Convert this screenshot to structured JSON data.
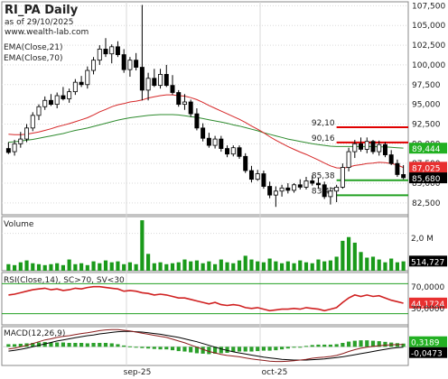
{
  "header": {
    "title": "RI_PA Daily",
    "subtitle": "as of 29/10/2025",
    "site": "www.wealth-lab.com",
    "ema1": "EMA(Close,21)",
    "ema2": "EMA(Close,70)"
  },
  "colors": {
    "up_body": "#ffffff",
    "down_body": "#000000",
    "candle_edge": "#000000",
    "ema21": "#d62728",
    "ema70": "#2e8b2e",
    "resistance": "#e00000",
    "support": "#22a022",
    "volume": "#1a9a1a",
    "rsi": "#d02020",
    "rsi_band": "#22a022",
    "macd_line": "#8b1a1a",
    "macd_signal": "#000000",
    "macd_hist": "#2aa02a",
    "grid": "#d9d9d9",
    "tag_green": "#22b022",
    "tag_red": "#e83030",
    "tag_black": "#000000"
  },
  "price_panel": {
    "y_ticks": [
      "107,500",
      "105,000",
      "102,500",
      "100,000",
      "97,500",
      "95,000",
      "92,500",
      "90,000",
      "87,500",
      "85,000",
      "82,500"
    ],
    "level_labels": [
      "92,10",
      "90,16",
      "85,38",
      "83,47"
    ],
    "tags": {
      "ema70": "89,444",
      "ema21": "87,025",
      "last": "85,680"
    }
  },
  "volume_panel": {
    "title": "Volume",
    "y_label": "2,0 M",
    "tag": "514,727"
  },
  "rsi_panel": {
    "title": "RSI(Close,14), SC>70, SV<30",
    "y_labels": [
      "70,0000",
      "30,0000"
    ],
    "tag": "44,1724"
  },
  "macd_panel": {
    "title": "MACD(12,26,9)",
    "tags": [
      "0,3189",
      "-0,0473"
    ]
  },
  "x_labels": [
    "sep-25",
    "oct-25"
  ],
  "chart_data": {
    "type": "candlestick",
    "ylim": [
      81000,
      108000
    ],
    "candles": [
      {
        "o": 89400,
        "h": 90200,
        "l": 88700,
        "c": 88900
      },
      {
        "o": 89000,
        "h": 90500,
        "l": 88500,
        "c": 90000
      },
      {
        "o": 90000,
        "h": 91500,
        "l": 89500,
        "c": 90600
      },
      {
        "o": 90600,
        "h": 92500,
        "l": 90200,
        "c": 92000
      },
      {
        "o": 92000,
        "h": 94000,
        "l": 91600,
        "c": 93600
      },
      {
        "o": 93600,
        "h": 95000,
        "l": 93000,
        "c": 94700
      },
      {
        "o": 94700,
        "h": 96000,
        "l": 94300,
        "c": 95500
      },
      {
        "o": 95500,
        "h": 96300,
        "l": 94800,
        "c": 95000
      },
      {
        "o": 95000,
        "h": 96500,
        "l": 94500,
        "c": 96100
      },
      {
        "o": 96100,
        "h": 97200,
        "l": 95500,
        "c": 95700
      },
      {
        "o": 95700,
        "h": 97000,
        "l": 95200,
        "c": 96600
      },
      {
        "o": 96600,
        "h": 98200,
        "l": 96200,
        "c": 97800
      },
      {
        "o": 97800,
        "h": 98600,
        "l": 97200,
        "c": 97500
      },
      {
        "o": 97500,
        "h": 99800,
        "l": 97000,
        "c": 99300
      },
      {
        "o": 99300,
        "h": 101000,
        "l": 98800,
        "c": 100600
      },
      {
        "o": 100600,
        "h": 102500,
        "l": 100000,
        "c": 102000
      },
      {
        "o": 102000,
        "h": 103400,
        "l": 101000,
        "c": 101400
      },
      {
        "o": 101400,
        "h": 102600,
        "l": 100200,
        "c": 102300
      },
      {
        "o": 102300,
        "h": 103000,
        "l": 101000,
        "c": 101300
      },
      {
        "o": 101300,
        "h": 102000,
        "l": 99000,
        "c": 99400
      },
      {
        "o": 99400,
        "h": 101000,
        "l": 98500,
        "c": 100600
      },
      {
        "o": 100600,
        "h": 101500,
        "l": 99300,
        "c": 99700
      },
      {
        "o": 99700,
        "h": 107600,
        "l": 95500,
        "c": 96800
      },
      {
        "o": 96800,
        "h": 99000,
        "l": 95500,
        "c": 98300
      },
      {
        "o": 98300,
        "h": 99500,
        "l": 97200,
        "c": 97400
      },
      {
        "o": 97400,
        "h": 99500,
        "l": 97000,
        "c": 98800
      },
      {
        "o": 98800,
        "h": 100000,
        "l": 97200,
        "c": 97400
      },
      {
        "o": 97400,
        "h": 98700,
        "l": 96200,
        "c": 96500
      },
      {
        "o": 96500,
        "h": 96800,
        "l": 94700,
        "c": 95000
      },
      {
        "o": 95000,
        "h": 96300,
        "l": 94300,
        "c": 95300
      },
      {
        "o": 95300,
        "h": 95600,
        "l": 93400,
        "c": 93800
      },
      {
        "o": 93800,
        "h": 94500,
        "l": 91700,
        "c": 92000
      },
      {
        "o": 92000,
        "h": 92600,
        "l": 90300,
        "c": 90700
      },
      {
        "o": 90700,
        "h": 91400,
        "l": 89500,
        "c": 89800
      },
      {
        "o": 89800,
        "h": 91000,
        "l": 89400,
        "c": 90600
      },
      {
        "o": 90600,
        "h": 91000,
        "l": 89000,
        "c": 89400
      },
      {
        "o": 89400,
        "h": 89800,
        "l": 88300,
        "c": 88700
      },
      {
        "o": 88700,
        "h": 89800,
        "l": 88400,
        "c": 89500
      },
      {
        "o": 89500,
        "h": 89800,
        "l": 88100,
        "c": 88400
      },
      {
        "o": 88400,
        "h": 88800,
        "l": 86300,
        "c": 86600
      },
      {
        "o": 86600,
        "h": 87200,
        "l": 85100,
        "c": 85500
      },
      {
        "o": 85500,
        "h": 86700,
        "l": 85300,
        "c": 86200
      },
      {
        "o": 86200,
        "h": 86600,
        "l": 84300,
        "c": 84600
      },
      {
        "o": 84600,
        "h": 85200,
        "l": 83100,
        "c": 83500
      },
      {
        "o": 83500,
        "h": 84600,
        "l": 82000,
        "c": 84000
      },
      {
        "o": 84000,
        "h": 84800,
        "l": 83300,
        "c": 84400
      },
      {
        "o": 84400,
        "h": 85000,
        "l": 83700,
        "c": 84100
      },
      {
        "o": 84100,
        "h": 85000,
        "l": 83800,
        "c": 84800
      },
      {
        "o": 84800,
        "h": 85500,
        "l": 84200,
        "c": 84500
      },
      {
        "o": 84500,
        "h": 85800,
        "l": 84200,
        "c": 85300
      },
      {
        "o": 85300,
        "h": 86000,
        "l": 84700,
        "c": 85000
      },
      {
        "o": 85000,
        "h": 85700,
        "l": 84300,
        "c": 84800
      },
      {
        "o": 84800,
        "h": 85200,
        "l": 83000,
        "c": 83300
      },
      {
        "o": 83300,
        "h": 84500,
        "l": 82300,
        "c": 84000
      },
      {
        "o": 84000,
        "h": 84800,
        "l": 82600,
        "c": 84500
      },
      {
        "o": 84500,
        "h": 87500,
        "l": 84300,
        "c": 87000
      },
      {
        "o": 87000,
        "h": 89500,
        "l": 86500,
        "c": 89000
      },
      {
        "o": 89000,
        "h": 90500,
        "l": 88200,
        "c": 90000
      },
      {
        "o": 90000,
        "h": 90800,
        "l": 89000,
        "c": 89300
      },
      {
        "o": 89300,
        "h": 90800,
        "l": 88800,
        "c": 90300
      },
      {
        "o": 90300,
        "h": 90500,
        "l": 88700,
        "c": 89000
      },
      {
        "o": 89000,
        "h": 90400,
        "l": 88500,
        "c": 89900
      },
      {
        "o": 89900,
        "h": 90200,
        "l": 88300,
        "c": 88600
      },
      {
        "o": 88600,
        "h": 89200,
        "l": 87300,
        "c": 87500
      },
      {
        "o": 87500,
        "h": 88000,
        "l": 85800,
        "c": 86100
      },
      {
        "o": 86100,
        "h": 87300,
        "l": 85500,
        "c": 85700
      }
    ],
    "ema21": [
      91200,
      91150,
      91150,
      91200,
      91350,
      91500,
      91700,
      91900,
      92150,
      92350,
      92550,
      92800,
      93050,
      93300,
      93650,
      94050,
      94350,
      94700,
      94950,
      95100,
      95300,
      95400,
      95550,
      95800,
      95950,
      96100,
      96200,
      96200,
      96100,
      96050,
      95850,
      95600,
      95250,
      94850,
      94500,
      94150,
      93800,
      93450,
      93100,
      92700,
      92250,
      91850,
      91400,
      90900,
      90450,
      90050,
      89650,
      89300,
      88950,
      88650,
      88300,
      87950,
      87550,
      87200,
      86950,
      86900,
      87050,
      87250,
      87350,
      87500,
      87550,
      87650,
      87600,
      87500,
      87300,
      87000
    ],
    "ema70": [
      90200,
      90250,
      90350,
      90450,
      90550,
      90700,
      90850,
      91000,
      91150,
      91300,
      91500,
      91700,
      91850,
      92000,
      92200,
      92400,
      92600,
      92800,
      93000,
      93150,
      93300,
      93400,
      93500,
      93600,
      93650,
      93700,
      93700,
      93700,
      93650,
      93550,
      93450,
      93350,
      93200,
      93050,
      92900,
      92750,
      92600,
      92400,
      92250,
      92050,
      91850,
      91650,
      91400,
      91200,
      91000,
      90800,
      90600,
      90450,
      90300,
      90150,
      90000,
      89900,
      89800,
      89700,
      89650,
      89650,
      89650,
      89650,
      89650,
      89650,
      89650,
      89600,
      89600,
      89550,
      89500,
      89450
    ],
    "levels": [
      {
        "label": "92,10",
        "value": 92100,
        "color": "resistance",
        "start": 54
      },
      {
        "label": "90,16",
        "value": 90160,
        "color": "resistance",
        "start": 54
      },
      {
        "label": "85,38",
        "value": 85380,
        "color": "support",
        "start": 54
      },
      {
        "label": "83,47",
        "value": 83470,
        "color": "support",
        "start": 54
      }
    ],
    "volume": [
      0.35,
      0.3,
      0.45,
      0.55,
      0.4,
      0.35,
      0.3,
      0.35,
      0.4,
      0.3,
      0.6,
      0.35,
      0.4,
      0.3,
      0.5,
      0.4,
      0.55,
      0.45,
      0.5,
      0.35,
      0.45,
      0.35,
      2.7,
      0.9,
      0.4,
      0.45,
      0.35,
      0.4,
      0.45,
      0.6,
      0.5,
      0.55,
      0.4,
      0.5,
      0.35,
      0.6,
      0.45,
      0.4,
      0.55,
      0.8,
      0.6,
      0.5,
      0.45,
      0.65,
      0.5,
      0.4,
      0.5,
      0.4,
      0.55,
      0.45,
      0.4,
      0.6,
      0.5,
      0.55,
      0.75,
      1.6,
      1.8,
      1.5,
      1.0,
      0.7,
      0.75,
      0.6,
      0.45,
      0.65,
      0.45,
      0.5
    ],
    "volume_ylim": [
      0,
      2.8
    ],
    "rsi": [
      55,
      56,
      58,
      60,
      62,
      63,
      64,
      62,
      63,
      61,
      62,
      64,
      63,
      65,
      66,
      66,
      65,
      64,
      63,
      60,
      61,
      60,
      58,
      57,
      55,
      56,
      55,
      53,
      51,
      51,
      49,
      47,
      45,
      43,
      45,
      42,
      41,
      42,
      41,
      38,
      37,
      38,
      36,
      34,
      35,
      36,
      36,
      37,
      36,
      38,
      37,
      36,
      34,
      36,
      38,
      45,
      51,
      55,
      53,
      55,
      53,
      54,
      51,
      48,
      46,
      44
    ],
    "rsi_ylim": [
      15,
      85
    ],
    "rsi_bands": [
      70,
      30
    ],
    "macd": [
      -0.3,
      -0.2,
      0.0,
      0.2,
      0.45,
      0.7,
      0.95,
      1.1,
      1.3,
      1.45,
      1.55,
      1.7,
      1.85,
      1.95,
      2.1,
      2.25,
      2.35,
      2.4,
      2.4,
      2.3,
      2.2,
      2.05,
      1.9,
      1.75,
      1.6,
      1.45,
      1.3,
      1.05,
      0.8,
      0.55,
      0.25,
      -0.05,
      -0.35,
      -0.65,
      -0.85,
      -1.05,
      -1.2,
      -1.3,
      -1.4,
      -1.55,
      -1.7,
      -1.8,
      -1.9,
      -2.0,
      -2.05,
      -2.05,
      -2.0,
      -1.95,
      -1.85,
      -1.75,
      -1.6,
      -1.5,
      -1.45,
      -1.35,
      -1.2,
      -0.95,
      -0.65,
      -0.4,
      -0.2,
      -0.05,
      0.05,
      0.15,
      0.22,
      0.27,
      0.3,
      0.32
    ],
    "macd_signal": [
      -0.6,
      -0.5,
      -0.35,
      -0.2,
      0.0,
      0.2,
      0.4,
      0.6,
      0.8,
      0.95,
      1.1,
      1.25,
      1.4,
      1.55,
      1.65,
      1.8,
      1.9,
      2.0,
      2.1,
      2.15,
      2.15,
      2.1,
      2.05,
      1.95,
      1.85,
      1.75,
      1.6,
      1.45,
      1.3,
      1.1,
      0.9,
      0.7,
      0.45,
      0.2,
      -0.05,
      -0.3,
      -0.5,
      -0.7,
      -0.85,
      -1.0,
      -1.15,
      -1.3,
      -1.45,
      -1.55,
      -1.65,
      -1.75,
      -1.8,
      -1.85,
      -1.85,
      -1.85,
      -1.8,
      -1.75,
      -1.7,
      -1.6,
      -1.5,
      -1.4,
      -1.25,
      -1.1,
      -0.95,
      -0.8,
      -0.65,
      -0.5,
      -0.35,
      -0.22,
      -0.12,
      -0.05
    ],
    "macd_ylim": [
      -2.6,
      2.8
    ]
  }
}
